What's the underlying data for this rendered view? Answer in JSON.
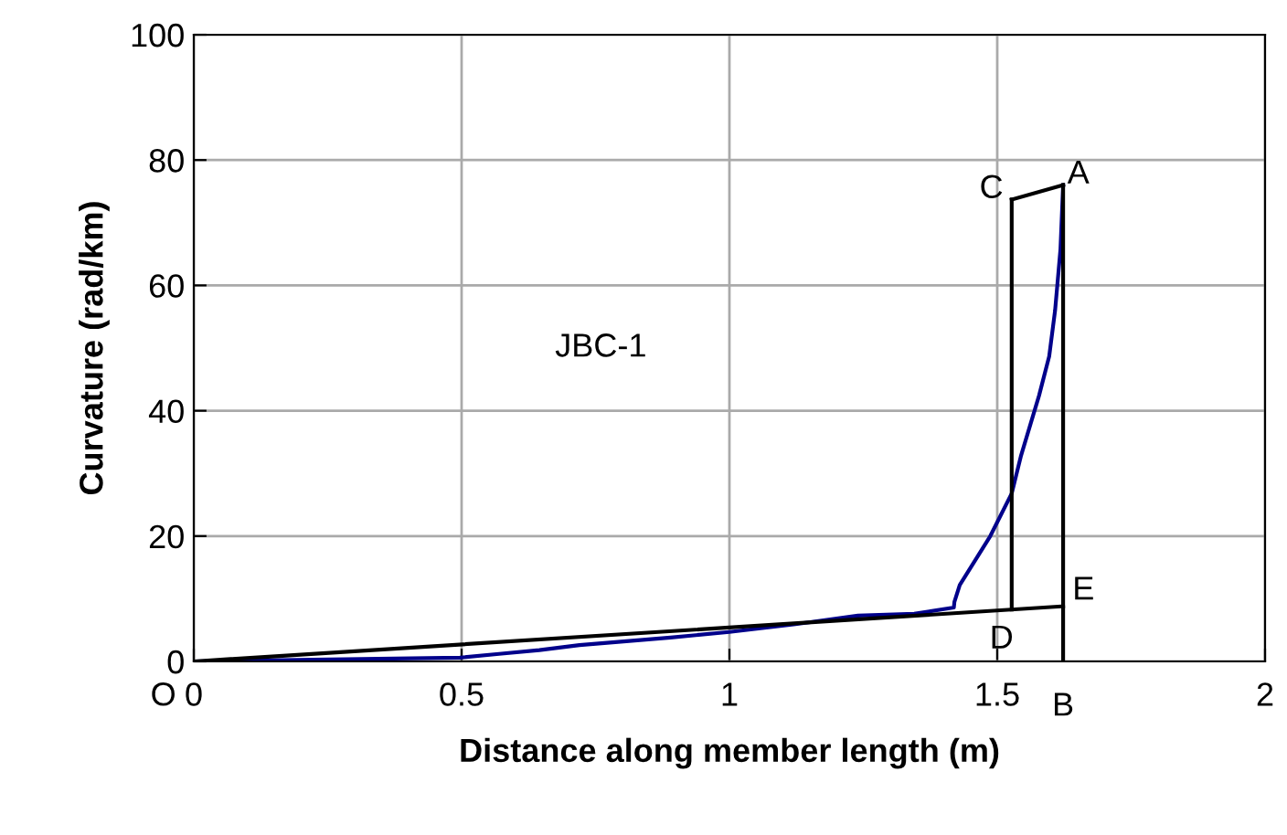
{
  "chart_data": {
    "type": "line",
    "xlabel": "Distance along member length (m)",
    "ylabel": "Curvature (rad/km)",
    "xlim": [
      0,
      2
    ],
    "xticks": [
      0,
      0.5,
      1,
      1.5,
      2
    ],
    "ylim": [
      0,
      100
    ],
    "yticks": [
      0,
      20,
      40,
      60,
      80,
      100
    ],
    "grid": true,
    "line_style": "solid",
    "marker": "none",
    "series": [
      {
        "color": "#00008b",
        "x": [
          0,
          0.497,
          0.57,
          0.645,
          0.72,
          0.89,
          1.0,
          1.12,
          1.24,
          1.345,
          1.419,
          1.42,
          1.43,
          1.487,
          1.527,
          1.544,
          1.578,
          1.597,
          1.608,
          1.618,
          1.623
        ],
        "values": [
          0,
          0.6,
          1.2,
          1.8,
          2.6,
          3.8,
          4.7,
          5.9,
          7.3,
          7.6,
          8.6,
          9.5,
          12.2,
          20,
          26.8,
          32.7,
          42.4,
          48.7,
          56,
          65.7,
          76
        ]
      },
      {
        "color": "#000000",
        "x": [
          0,
          1.623
        ],
        "values": [
          0,
          8.8
        ]
      },
      {
        "color": "#000000",
        "x": [
          1.623,
          1.623
        ],
        "values": [
          0,
          76
        ]
      },
      {
        "color": "#000000",
        "x": [
          1.527,
          1.527
        ],
        "values": [
          8.3,
          73.7
        ]
      },
      {
        "color": "#000000",
        "x": [
          1.527,
          1.623
        ],
        "values": [
          73.7,
          76
        ]
      }
    ],
    "annotations": [
      "JBC-1",
      {
        "text": "O",
        "x": 0,
        "y": 0
      },
      {
        "text": "A",
        "x": 1.623,
        "y": 76
      },
      {
        "text": "B",
        "x": 1.623,
        "y": 0
      },
      {
        "text": "C",
        "x": 1.527,
        "y": 73.7
      },
      {
        "text": "D",
        "x": 1.527,
        "y": 8.3
      },
      {
        "text": "E",
        "x": 1.623,
        "y": 8.8
      }
    ]
  }
}
